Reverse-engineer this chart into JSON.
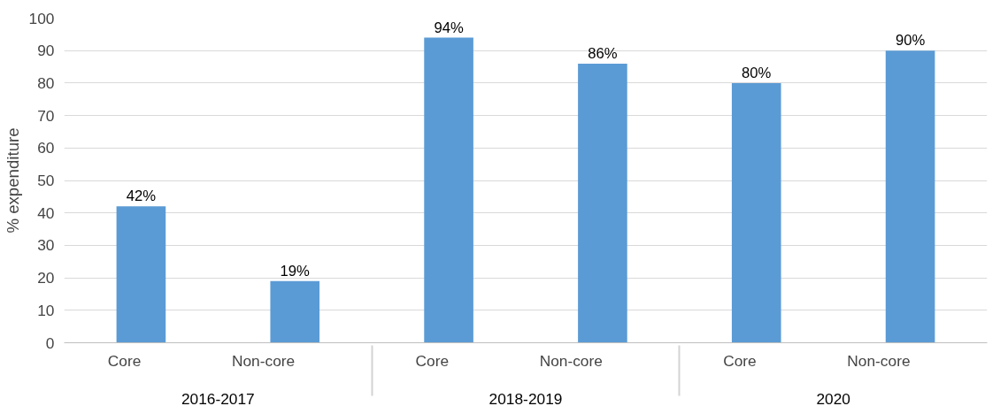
{
  "chart_data": {
    "type": "bar",
    "ylabel": "% expenditure",
    "categories": [
      "Core",
      "Non-core",
      "Core",
      "Non-core",
      "Core",
      "Non-core"
    ],
    "annotations": [
      "2016-2017",
      "2018-2019",
      "2020"
    ],
    "values": [
      42,
      19,
      94,
      86,
      80,
      90
    ],
    "value_labels": [
      "42%",
      "19%",
      "94%",
      "86%",
      "80%",
      "90%"
    ],
    "color": "#5b9bd5",
    "ylim": [
      0,
      100
    ],
    "yticks": [
      0,
      10,
      20,
      30,
      40,
      50,
      60,
      70,
      80,
      90,
      100
    ],
    "grid": "y"
  }
}
